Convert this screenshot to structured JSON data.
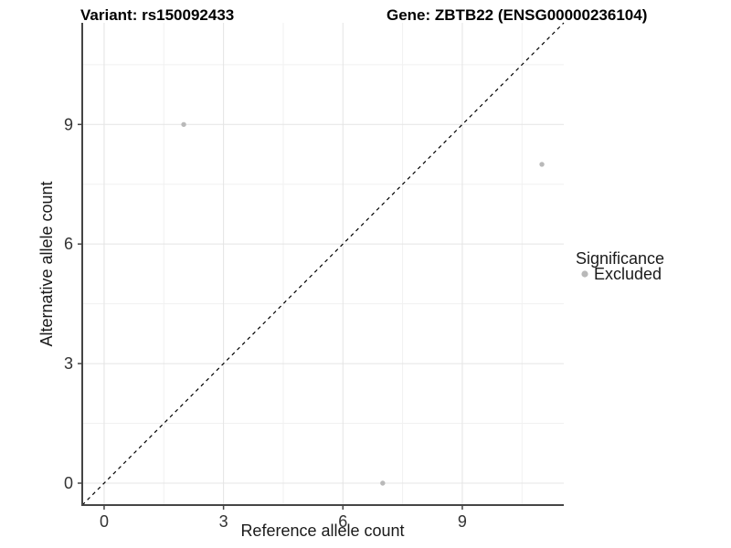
{
  "titles": {
    "variant": "Variant: rs150092433",
    "gene": "Gene: ZBTB22 (ENSG00000236104)"
  },
  "chart_data": {
    "type": "scatter",
    "title_left": "Variant: rs150092433",
    "title_right": "Gene: ZBTB22 (ENSG00000236104)",
    "xlabel": "Reference allele count",
    "ylabel": "Alternative allele count",
    "xlim": [
      -0.55,
      11.55
    ],
    "ylim": [
      -0.55,
      11.55
    ],
    "x_ticks": [
      0,
      3,
      6,
      9
    ],
    "y_ticks": [
      0,
      3,
      6,
      9
    ],
    "x_minor_gridlines": [
      1.5,
      4.5,
      7.5,
      10.5
    ],
    "y_minor_gridlines": [
      1.5,
      4.5,
      7.5,
      10.5
    ],
    "grid": true,
    "series": [
      {
        "name": "Excluded",
        "color": "#b9b9b9",
        "points": [
          {
            "x": 2,
            "y": 9
          },
          {
            "x": 11,
            "y": 8
          },
          {
            "x": 7,
            "y": 0
          }
        ]
      }
    ],
    "identity_line": {
      "style": "dashed",
      "color": "#000000",
      "slope": 1,
      "intercept": 0
    },
    "legend": {
      "position": "right",
      "title": "Significance",
      "entries": [
        {
          "label": "Excluded",
          "color": "#b9b9b9"
        }
      ]
    }
  },
  "colors": {
    "background": "#ffffff",
    "grid_major": "#e4e4e4",
    "grid_minor": "#f1f1f1",
    "axis_line": "#454545",
    "tick_text": "#333333",
    "point": "#b9b9b9",
    "dashed_line": "#000000"
  }
}
